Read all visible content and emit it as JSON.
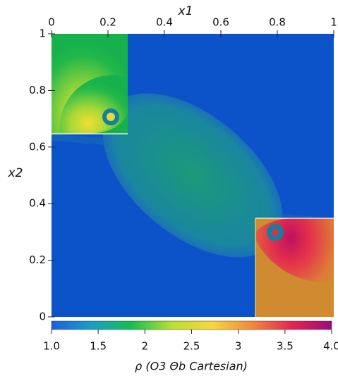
{
  "chart_data": {
    "type": "image",
    "xlabel": "x1",
    "ylabel": "x2",
    "xlim": [
      0,
      1
    ],
    "ylim": [
      0,
      1
    ],
    "xticks": [
      0,
      0.2,
      0.4,
      0.6,
      0.8,
      1
    ],
    "yticks": [
      0,
      0.2,
      0.4,
      0.6,
      0.8,
      1
    ],
    "colorbar_label": "ρ (O3 Θb Cartesian)",
    "clim": [
      1.0,
      4.0
    ],
    "cticks": [
      {
        "value": 1.0,
        "label": "1.0"
      },
      1.5,
      2,
      2.5,
      3,
      3.5,
      {
        "value": 4.0,
        "label": "4.0"
      }
    ],
    "colormap": [
      "#1d5fe0",
      "#15a0c8",
      "#14c050",
      "#b8e030",
      "#f8d838",
      "#f28a3c",
      "#e8254e",
      "#9a0c78"
    ]
  }
}
